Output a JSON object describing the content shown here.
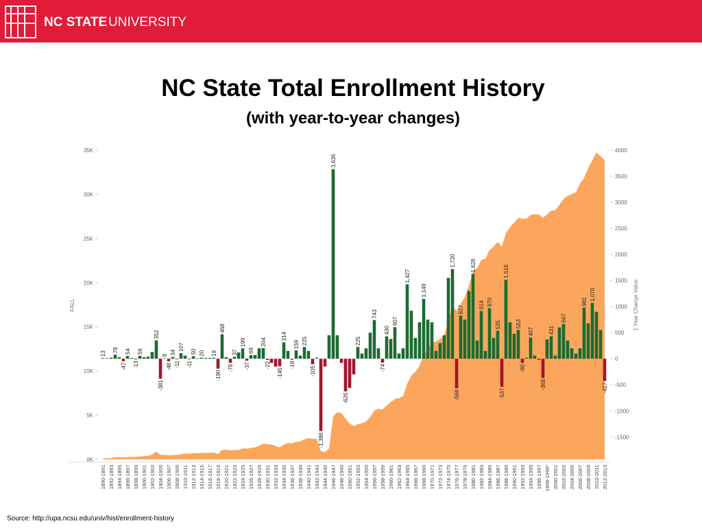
{
  "header": {
    "brand_bold": "NC STATE",
    "brand": "UNIVERSITY"
  },
  "source": "Source: http://upa.ncsu.edu/univ/hist/enrollment-history",
  "chart_data": {
    "type": "bar",
    "title": "NC State Total Enrollment History",
    "subtitle": "(with year-to-year changes)",
    "y_label": "FALL",
    "y2_label": "1 Year Change Value",
    "categories": [
      "1890-1891",
      null,
      "1892-1893",
      null,
      "1894-1895",
      null,
      "1896-1897",
      null,
      "1898-1899",
      null,
      "1900-1901",
      null,
      "1902-1903",
      null,
      "1904-1905",
      null,
      "1906-1907",
      null,
      "1908-1909",
      null,
      "1910-1911",
      null,
      "1912-1913",
      null,
      "1914-1915",
      null,
      "1916-1917",
      null,
      "1918-1919",
      null,
      "1920-1921",
      null,
      "1922-1923",
      null,
      "1924-1925",
      null,
      "1926-1927",
      null,
      "1928-1929",
      null,
      "1930-1931",
      null,
      "1932-1933",
      null,
      "1934-1935",
      null,
      "1936-1937",
      null,
      "1938-1939",
      null,
      "1940-1941",
      null,
      "1942-1943",
      null,
      "1944-1945",
      null,
      "1946-1947",
      null,
      "1948-1949",
      null,
      "1950-1951",
      null,
      "1952-1953",
      null,
      "1954-1955",
      null,
      "1956-1957",
      null,
      "1958-1959",
      null,
      "1960-1961",
      null,
      "1962-1963",
      null,
      "1964-1965",
      null,
      "1966-1967",
      null,
      "1968-1969",
      null,
      "1970-1971",
      null,
      "1972-1973",
      null,
      "1974-1975",
      null,
      "1976-1977",
      null,
      "1978-1979",
      null,
      "1980-1981",
      null,
      "1982-1983",
      null,
      "1984-1985",
      null,
      "1986-1987",
      null,
      "1988-1989",
      null,
      "1990-1991",
      null,
      "1992-1993",
      null,
      "1994-1995",
      null,
      "1996-1997",
      null,
      "1998-1999*",
      null,
      "2000-2001",
      null,
      "2002-2003",
      null,
      "2004-2005",
      null,
      "2006-2007",
      null,
      "2008-2009",
      null,
      "2010-2011",
      null,
      "2012-2013"
    ],
    "ylim": [
      0,
      35000
    ],
    "yticks": [
      {
        "value": 0,
        "label": "0K"
      },
      {
        "value": 5000,
        "label": "5K"
      },
      {
        "value": 10000,
        "label": "10K"
      },
      {
        "value": 15000,
        "label": "15K"
      },
      {
        "value": 20000,
        "label": "20K"
      },
      {
        "value": 25000,
        "label": "25K"
      },
      {
        "value": 30000,
        "label": "30K"
      },
      {
        "value": 35000,
        "label": "35K"
      }
    ],
    "y2lim": [
      -1930,
      4000
    ],
    "y2ticks": [
      -1500,
      -1000,
      -500,
      0,
      500,
      1000,
      1500,
      2000,
      2500,
      3000,
      3500,
      4000
    ],
    "series": [
      {
        "type": "area",
        "color": "#fba65c",
        "values": [
          120,
          130,
          150,
          230,
          260,
          220,
          270,
          280,
          270,
          330,
          360,
          400,
          530,
          880,
          500,
          510,
          460,
          500,
          490,
          600,
          660,
          650,
          700,
          710,
          730,
          740,
          760,
          780,
          590,
          1060,
          1090,
          1010,
          1050,
          1060,
          1260,
          1220,
          1290,
          1360,
          1560,
          1760,
          1740,
          1660,
          1510,
          1360,
          1680,
          1840,
          1820,
          1980,
          2040,
          2260,
          2410,
          2310,
          2330,
          950,
          800,
          1250,
          4880,
          5330,
          5250,
          4620,
          4060,
          3760,
          3990,
          4090,
          4290,
          4790,
          5530,
          5730,
          5660,
          6090,
          6480,
          6840,
          6940,
          7140,
          8570,
          9490,
          9890,
          10590,
          11740,
          12490,
          13190,
          13340,
          13640,
          14090,
          15640,
          17360,
          16790,
          17620,
          18370,
          19670,
          21300,
          21650,
          22560,
          22710,
          23680,
          24080,
          24620,
          24080,
          25600,
          26300,
          26780,
          27330,
          27250,
          27270,
          27680,
          27740,
          27720,
          27350,
          27720,
          28150,
          28210,
          28810,
          29480,
          29830,
          30030,
          30230,
          31210,
          31890,
          32960,
          33860,
          34760,
          34310,
          33880
        ]
      },
      {
        "type": "bar",
        "axis": "y2",
        "color": "#1d6b31",
        "negative_color": "#a3162b",
        "values": [
          13,
          10,
          20,
          78,
          30,
          -47,
          54,
          15,
          -13,
          56,
          30,
          40,
          130,
          352,
          -381,
          9,
          -48,
          34,
          -11,
          107,
          60,
          -11,
          50,
          10,
          20,
          15,
          15,
          19,
          -190,
          468,
          30,
          -78,
          37,
          120,
          199,
          -37,
          69,
          70,
          200,
          204,
          -22,
          -80,
          -150,
          -145,
          314,
          150,
          -18,
          159,
          60,
          225,
          150,
          -105,
          20,
          -1386,
          -150,
          450,
          3636,
          450,
          -80,
          -626,
          -560,
          -300,
          225,
          100,
          200,
          500,
          743,
          200,
          -74,
          430,
          380,
          607,
          100,
          200,
          1427,
          920,
          400,
          700,
          1149,
          750,
          700,
          150,
          300,
          450,
          1550,
          1720,
          -568,
          827,
          750,
          1300,
          1628,
          350,
          914,
          150,
          970,
          400,
          535,
          -537,
          1516,
          700,
          480,
          553,
          -80,
          20,
          407,
          60,
          -20,
          -368,
          370,
          431,
          60,
          600,
          667,
          350,
          200,
          100,
          200,
          981,
          680,
          1070,
          900,
          550,
          -427
        ],
        "value_labels": [
          "13",
          null,
          null,
          "78",
          null,
          "-47",
          "54",
          null,
          "-13",
          "56",
          null,
          null,
          null,
          "352",
          "-381",
          "9",
          "-48",
          "34",
          "-11",
          "107",
          null,
          "-11",
          "50",
          null,
          "20",
          null,
          null,
          "19",
          "-190",
          "468",
          null,
          "-78",
          "37",
          null,
          "199",
          "-37",
          "69",
          null,
          null,
          "204",
          "-22",
          null,
          null,
          "-145",
          "314",
          null,
          "-18",
          "159",
          null,
          "225",
          null,
          "-105",
          null,
          "-1,386",
          null,
          null,
          "3,636",
          null,
          null,
          "-626",
          null,
          null,
          "225",
          null,
          null,
          null,
          "743",
          null,
          "-74",
          "430",
          null,
          "607",
          null,
          null,
          "1,427",
          null,
          null,
          null,
          "1,149",
          null,
          null,
          null,
          null,
          null,
          null,
          "1,720",
          "-568",
          "827",
          null,
          null,
          "1,628",
          null,
          "914",
          null,
          "970",
          null,
          "535",
          "-537",
          "1,516",
          null,
          null,
          "553",
          "-80",
          null,
          "407",
          null,
          null,
          "-368",
          null,
          "431",
          null,
          null,
          "667",
          null,
          null,
          null,
          null,
          "981",
          null,
          "1,070",
          null,
          null,
          "-427"
        ]
      }
    ]
  }
}
